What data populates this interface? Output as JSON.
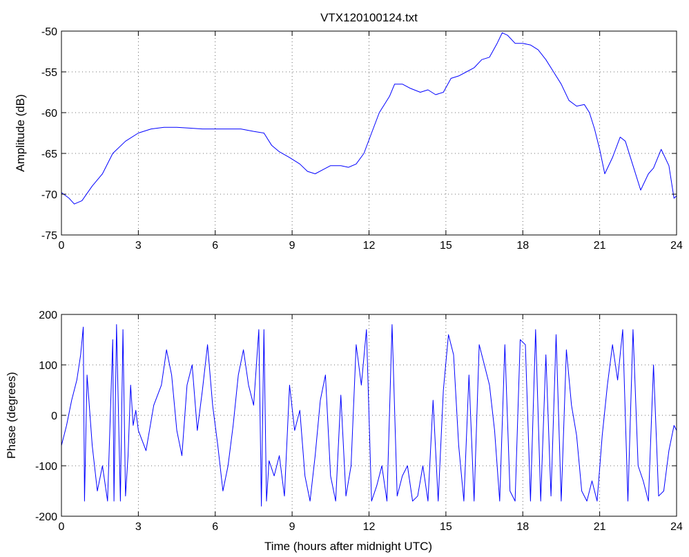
{
  "chart_data": [
    {
      "type": "line",
      "title": "VTX120100124.txt",
      "xlabel": "",
      "ylabel": "Amplitude (dB)",
      "xlim": [
        0,
        24
      ],
      "ylim": [
        -75,
        -50
      ],
      "xticks": [
        0,
        3,
        6,
        9,
        12,
        15,
        18,
        21,
        24
      ],
      "yticks": [
        -75,
        -70,
        -65,
        -60,
        -55,
        -50
      ],
      "grid": true,
      "series": [
        {
          "color": "#0000ff",
          "x": [
            0,
            0.3,
            0.5,
            0.8,
            1.2,
            1.6,
            2.0,
            2.5,
            3.0,
            3.5,
            4.0,
            4.5,
            5.0,
            5.5,
            6.0,
            6.5,
            7.0,
            7.5,
            7.9,
            8.2,
            8.5,
            8.9,
            9.3,
            9.6,
            9.9,
            10.2,
            10.5,
            10.9,
            11.2,
            11.5,
            11.8,
            12.1,
            12.4,
            12.8,
            13.0,
            13.3,
            13.6,
            14.0,
            14.3,
            14.6,
            14.9,
            15.2,
            15.5,
            15.8,
            16.1,
            16.4,
            16.7,
            17.0,
            17.2,
            17.4,
            17.7,
            18.0,
            18.3,
            18.6,
            18.9,
            19.2,
            19.5,
            19.8,
            20.1,
            20.4,
            20.6,
            20.8,
            21.0,
            21.2,
            21.5,
            21.8,
            22.0,
            22.3,
            22.6,
            22.9,
            23.1,
            23.4,
            23.7,
            23.9,
            24.0
          ],
          "y": [
            -69.8,
            -70.5,
            -71.2,
            -70.8,
            -69.0,
            -67.5,
            -65.0,
            -63.5,
            -62.5,
            -62.0,
            -61.8,
            -61.8,
            -61.9,
            -62.0,
            -62.0,
            -62.0,
            -62.0,
            -62.3,
            -62.5,
            -64.0,
            -64.8,
            -65.5,
            -66.3,
            -67.2,
            -67.5,
            -67.0,
            -66.5,
            -66.5,
            -66.7,
            -66.3,
            -65.0,
            -62.5,
            -60.0,
            -58.0,
            -56.5,
            -56.5,
            -57.0,
            -57.5,
            -57.2,
            -57.8,
            -57.5,
            -55.8,
            -55.5,
            -55.0,
            -54.5,
            -53.5,
            -53.2,
            -51.5,
            -50.2,
            -50.5,
            -51.5,
            -51.5,
            -51.7,
            -52.3,
            -53.5,
            -55.0,
            -56.5,
            -58.5,
            -59.2,
            -59.0,
            -60.0,
            -62.0,
            -64.5,
            -67.5,
            -65.5,
            -63.0,
            -63.5,
            -66.5,
            -69.5,
            -67.5,
            -66.8,
            -64.5,
            -66.5,
            -70.5,
            -70.2
          ]
        }
      ]
    },
    {
      "type": "line",
      "title": "",
      "xlabel": "Time (hours after midnight UTC)",
      "ylabel": "Phase (degrees)",
      "xlim": [
        0,
        24
      ],
      "ylim": [
        -200,
        200
      ],
      "xticks": [
        0,
        3,
        6,
        9,
        12,
        15,
        18,
        21,
        24
      ],
      "yticks": [
        -200,
        -100,
        0,
        100,
        200
      ],
      "grid": true,
      "series": [
        {
          "color": "#0000ff",
          "x": [
            0,
            0.2,
            0.4,
            0.6,
            0.75,
            0.85,
            0.9,
            1.0,
            1.2,
            1.4,
            1.6,
            1.8,
            2.0,
            2.05,
            2.15,
            2.3,
            2.4,
            2.5,
            2.6,
            2.7,
            2.8,
            2.9,
            3.0,
            3.3,
            3.6,
            3.9,
            4.1,
            4.3,
            4.5,
            4.7,
            4.9,
            5.1,
            5.3,
            5.5,
            5.7,
            5.9,
            6.1,
            6.3,
            6.5,
            6.7,
            6.9,
            7.1,
            7.3,
            7.5,
            7.7,
            7.8,
            7.9,
            8.0,
            8.1,
            8.3,
            8.5,
            8.7,
            8.9,
            9.1,
            9.3,
            9.5,
            9.7,
            9.9,
            10.1,
            10.3,
            10.5,
            10.7,
            10.9,
            11.1,
            11.3,
            11.5,
            11.7,
            11.9,
            12.1,
            12.3,
            12.5,
            12.7,
            12.9,
            13.1,
            13.3,
            13.5,
            13.7,
            13.9,
            14.1,
            14.3,
            14.5,
            14.7,
            14.9,
            15.1,
            15.3,
            15.5,
            15.7,
            15.9,
            16.1,
            16.3,
            16.5,
            16.7,
            16.9,
            17.1,
            17.3,
            17.5,
            17.7,
            17.9,
            18.1,
            18.3,
            18.5,
            18.7,
            18.9,
            19.1,
            19.3,
            19.5,
            19.7,
            19.9,
            20.1,
            20.3,
            20.5,
            20.7,
            20.9,
            21.1,
            21.3,
            21.5,
            21.7,
            21.9,
            22.1,
            22.3,
            22.5,
            22.7,
            22.9,
            23.1,
            23.3,
            23.5,
            23.7,
            23.9,
            24.0
          ],
          "y": [
            -60,
            -20,
            30,
            70,
            120,
            175,
            -170,
            80,
            -60,
            -150,
            -100,
            -170,
            150,
            -170,
            180,
            -170,
            170,
            -160,
            -80,
            60,
            -20,
            10,
            -30,
            -70,
            20,
            60,
            130,
            80,
            -30,
            -80,
            60,
            100,
            -30,
            50,
            140,
            20,
            -60,
            -150,
            -100,
            -20,
            80,
            130,
            60,
            20,
            170,
            -180,
            170,
            -170,
            -90,
            -120,
            -80,
            -160,
            60,
            -30,
            10,
            -120,
            -170,
            -80,
            30,
            80,
            -120,
            -170,
            40,
            -160,
            -100,
            140,
            60,
            170,
            -170,
            -140,
            -100,
            -170,
            180,
            -160,
            -120,
            -100,
            -170,
            -160,
            -100,
            -170,
            30,
            -170,
            50,
            160,
            120,
            -60,
            -170,
            80,
            -170,
            140,
            100,
            60,
            -30,
            -170,
            140,
            -150,
            -170,
            150,
            140,
            -170,
            170,
            -170,
            120,
            -160,
            160,
            -170,
            130,
            20,
            -40,
            -150,
            -170,
            -130,
            -170,
            -40,
            60,
            140,
            70,
            170,
            -170,
            170,
            -100,
            -130,
            -170,
            100,
            -160,
            -150,
            -70,
            -20,
            -30
          ]
        }
      ]
    }
  ]
}
